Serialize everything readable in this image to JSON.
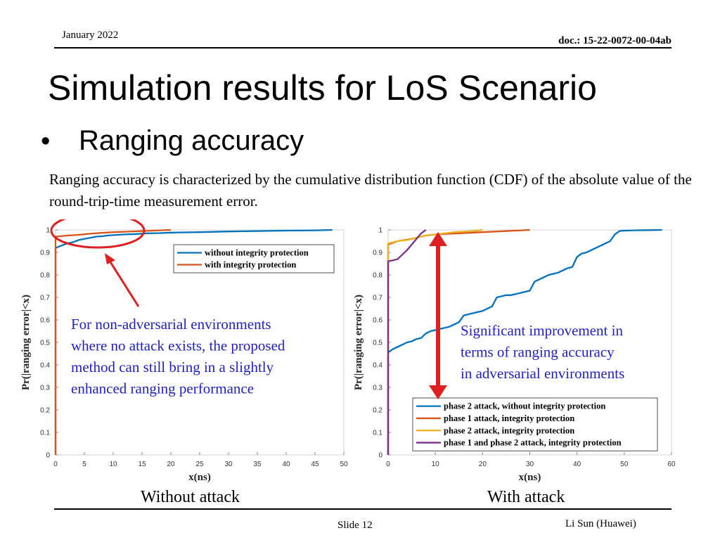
{
  "header": {
    "date": "January 2022",
    "doc": "doc.: 15-22-0072-00-04ab"
  },
  "title": "Simulation results for LoS Scenario",
  "bullet": {
    "marker": "•",
    "text": "Ranging accuracy"
  },
  "description": "Ranging accuracy is characterized by the cumulative distribution function (CDF) of the absolute value of the round-trip-time measurement error.",
  "captions": {
    "left": "Without attack",
    "right": "With attack"
  },
  "footer": {
    "slide": "Slide 12",
    "author": "Li Sun (Huawei)"
  },
  "colors": {
    "blue": "#0072BD",
    "orange": "#D95319",
    "yellow": "#EDB120",
    "purple": "#7E2F8E",
    "annotation": "#1f1fc8",
    "arrow": "#e02020"
  },
  "chart_data": [
    {
      "type": "line",
      "xlabel": "x(ns)",
      "ylabel": "Pr(|ranging error|<x)",
      "xlim": [
        0,
        50
      ],
      "ylim": [
        0,
        1
      ],
      "xticks": [
        0,
        5,
        10,
        15,
        20,
        25,
        30,
        35,
        40,
        45,
        50
      ],
      "yticks": [
        0,
        0.1,
        0.2,
        0.3,
        0.4,
        0.5,
        0.6,
        0.7,
        0.8,
        0.9,
        1
      ],
      "grid": false,
      "legend_position": "top-right",
      "series": [
        {
          "name": "without integrity protection",
          "color": "#0072BD",
          "x": [
            0,
            0,
            1,
            2,
            3,
            4,
            5,
            6,
            7,
            8,
            9,
            10,
            12,
            14,
            16,
            18,
            20,
            25,
            30,
            35,
            40,
            45,
            48
          ],
          "y": [
            0,
            0.92,
            0.93,
            0.94,
            0.945,
            0.955,
            0.96,
            0.965,
            0.97,
            0.972,
            0.975,
            0.977,
            0.98,
            0.982,
            0.985,
            0.986,
            0.988,
            0.99,
            0.993,
            0.995,
            0.997,
            0.998,
            1.0
          ]
        },
        {
          "name": "with integrity protection",
          "color": "#D95319",
          "x": [
            0,
            0,
            2,
            4,
            6,
            8,
            10,
            12,
            15,
            18,
            20
          ],
          "y": [
            0,
            0.97,
            0.975,
            0.978,
            0.983,
            0.987,
            0.99,
            0.992,
            0.995,
            0.998,
            1.0
          ]
        }
      ],
      "annotations": [
        {
          "text_lines": [
            "For non-adversarial environments",
            "where no attack exists, the proposed",
            "method can still bring in a slightly",
            "enhanced ranging performance"
          ]
        }
      ]
    },
    {
      "type": "line",
      "xlabel": "x(ns)",
      "ylabel": "Pr(|ranging error|<x)",
      "xlim": [
        0,
        60
      ],
      "ylim": [
        0,
        1
      ],
      "xticks": [
        0,
        10,
        20,
        30,
        40,
        50,
        60
      ],
      "yticks": [
        0,
        0.1,
        0.2,
        0.3,
        0.4,
        0.5,
        0.6,
        0.7,
        0.8,
        0.9,
        1
      ],
      "grid": false,
      "legend_position": "bottom-right",
      "series": [
        {
          "name": "phase 2 attack, without integrity protection",
          "color": "#0072BD",
          "x": [
            0,
            0,
            1,
            2,
            3,
            4,
            5,
            6,
            7,
            8,
            9,
            10,
            11,
            12,
            13,
            14,
            15,
            16,
            17,
            18,
            19,
            20,
            21,
            22,
            23,
            24,
            25,
            26,
            27,
            28,
            29,
            30,
            31,
            32,
            33,
            34,
            35,
            36,
            37,
            38,
            39,
            40,
            41,
            42,
            43,
            44,
            45,
            46,
            47,
            48,
            49,
            50,
            52,
            55,
            58
          ],
          "y": [
            0,
            0.455,
            0.47,
            0.48,
            0.49,
            0.5,
            0.505,
            0.515,
            0.52,
            0.54,
            0.55,
            0.555,
            0.56,
            0.565,
            0.57,
            0.58,
            0.59,
            0.62,
            0.625,
            0.63,
            0.635,
            0.64,
            0.65,
            0.66,
            0.7,
            0.705,
            0.71,
            0.71,
            0.715,
            0.72,
            0.725,
            0.73,
            0.77,
            0.78,
            0.79,
            0.8,
            0.805,
            0.81,
            0.82,
            0.83,
            0.835,
            0.88,
            0.895,
            0.9,
            0.91,
            0.92,
            0.93,
            0.94,
            0.95,
            0.98,
            0.995,
            0.997,
            0.998,
            0.999,
            1.0
          ]
        },
        {
          "name": "phase 1 attack, integrity protection",
          "color": "#D95319",
          "x": [
            0,
            0,
            2,
            5,
            8,
            10,
            15,
            20,
            25,
            30
          ],
          "y": [
            0,
            0.935,
            0.95,
            0.96,
            0.975,
            0.98,
            0.985,
            0.99,
            0.995,
            1.0
          ]
        },
        {
          "name": "phase 2 attack, integrity protection",
          "color": "#EDB120",
          "x": [
            0,
            0,
            2,
            4,
            6,
            8,
            10,
            14,
            18,
            20
          ],
          "y": [
            0,
            0.94,
            0.95,
            0.955,
            0.965,
            0.975,
            0.98,
            0.99,
            0.995,
            1.0
          ]
        },
        {
          "name": "phase 1 and phase 2 attack, integrity protection",
          "color": "#7E2F8E",
          "x": [
            0,
            0,
            2,
            4,
            6,
            7,
            8
          ],
          "y": [
            0,
            0.86,
            0.87,
            0.91,
            0.96,
            0.985,
            1.0
          ]
        }
      ],
      "annotations": [
        {
          "text_lines": [
            "Significant improvement in",
            "terms of ranging accuracy",
            "in adversarial environments"
          ]
        }
      ]
    }
  ]
}
